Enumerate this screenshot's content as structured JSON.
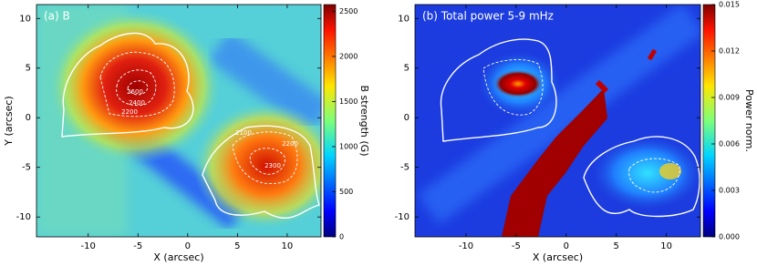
{
  "chart_data": [
    {
      "type": "heatmap",
      "title": "(a) B",
      "xlabel": "X (arcsec)",
      "ylabel": "Y (arcsec)",
      "xlim": [
        -15.2,
        13.4
      ],
      "ylim": [
        -12,
        11.4
      ],
      "xticks": [
        -10,
        -5,
        0,
        5,
        10
      ],
      "yticks": [
        -10,
        -5,
        0,
        5,
        10
      ],
      "colorbar": {
        "label": "B strength (G)",
        "lim": [
          0,
          2575
        ],
        "ticks": [
          0,
          500,
          1000,
          1500,
          2000,
          2500
        ]
      },
      "contour_labels": [
        2600,
        2400,
        2200,
        2100,
        2200,
        2300
      ]
    },
    {
      "type": "heatmap",
      "title": "(b) Total power 5-9 mHz",
      "xlabel": "X (arcsec)",
      "xlim": [
        -15.1,
        13.4
      ],
      "ylim": [
        -12,
        11.4
      ],
      "xticks": [
        -10,
        -5,
        0,
        5,
        10
      ],
      "yticks": [
        -10,
        -5,
        0,
        5,
        10
      ],
      "colorbar": {
        "label": "Power norm.",
        "lim": [
          0,
          0.015
        ],
        "ticks": [
          {
            "value": 0,
            "label": "0.000"
          },
          {
            "value": 0.003,
            "label": "0.003"
          },
          {
            "value": 0.006,
            "label": "0.006"
          },
          {
            "value": 0.009,
            "label": "0.009"
          },
          {
            "value": 0.012,
            "label": "0.012"
          },
          {
            "value": 0.015,
            "label": "0.015"
          }
        ]
      }
    }
  ]
}
